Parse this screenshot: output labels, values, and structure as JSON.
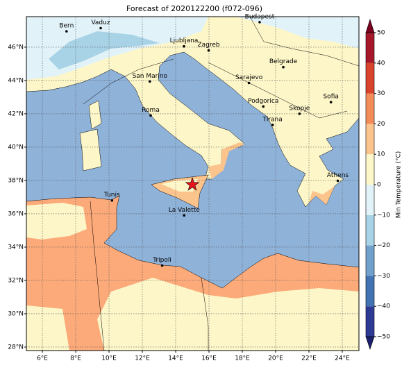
{
  "title": "Forecast of 2020122200 (f072-096)",
  "map": {
    "xlim": [
      5.04,
      25.0
    ],
    "ylim": [
      27.79,
      47.83
    ],
    "grid": true,
    "xticks": [
      {
        "value": 6,
        "label": "6°E"
      },
      {
        "value": 8,
        "label": "8°E"
      },
      {
        "value": 10,
        "label": "10°E"
      },
      {
        "value": 12,
        "label": "12°E"
      },
      {
        "value": 14,
        "label": "14°E"
      },
      {
        "value": 16,
        "label": "16°E"
      },
      {
        "value": 18,
        "label": "18°E"
      },
      {
        "value": 20,
        "label": "20°E"
      },
      {
        "value": 22,
        "label": "22°E"
      },
      {
        "value": 24,
        "label": "24°E"
      }
    ],
    "yticks": [
      {
        "value": 28,
        "label": "28°N"
      },
      {
        "value": 30,
        "label": "30°N"
      },
      {
        "value": 32,
        "label": "32°N"
      },
      {
        "value": 34,
        "label": "34°N"
      },
      {
        "value": 36,
        "label": "36°N"
      },
      {
        "value": 38,
        "label": "38°N"
      },
      {
        "value": 40,
        "label": "40°N"
      },
      {
        "value": 42,
        "label": "42°N"
      },
      {
        "value": 44,
        "label": "44°N"
      },
      {
        "value": 46,
        "label": "46°N"
      }
    ]
  },
  "cities": [
    {
      "name": "Bern",
      "lon": 7.45,
      "lat": 46.95
    },
    {
      "name": "Vaduz",
      "lon": 9.5,
      "lat": 47.14
    },
    {
      "name": "Budapest",
      "lon": 19.04,
      "lat": 47.5
    },
    {
      "name": "Ljubljana",
      "lon": 14.5,
      "lat": 46.05
    },
    {
      "name": "Zagreb",
      "lon": 15.98,
      "lat": 45.8
    },
    {
      "name": "San Marino",
      "lon": 12.45,
      "lat": 43.94
    },
    {
      "name": "Sarajevo",
      "lon": 18.4,
      "lat": 43.85
    },
    {
      "name": "Belgrade",
      "lon": 20.46,
      "lat": 44.8
    },
    {
      "name": "Roma",
      "lon": 12.5,
      "lat": 41.9
    },
    {
      "name": "Podgorica",
      "lon": 19.26,
      "lat": 42.44
    },
    {
      "name": "Skopje",
      "lon": 21.43,
      "lat": 42.0
    },
    {
      "name": "Sofia",
      "lon": 23.32,
      "lat": 42.7
    },
    {
      "name": "Tirana",
      "lon": 19.82,
      "lat": 41.33
    },
    {
      "name": "Athens",
      "lon": 23.73,
      "lat": 37.98
    },
    {
      "name": "Tunis",
      "lon": 10.18,
      "lat": 36.8
    },
    {
      "name": "La Valette",
      "lon": 14.51,
      "lat": 35.9
    },
    {
      "name": "Tripoli",
      "lon": 13.19,
      "lat": 32.89
    }
  ],
  "marker": {
    "lon": 15.0,
    "lat": 37.75,
    "color": "#e8141c"
  },
  "colorbar": {
    "label": "Min Temperature (°C)",
    "lim": [
      -50,
      50
    ],
    "ticks": [
      {
        "value": -50,
        "label": "−50"
      },
      {
        "value": -40,
        "label": "−40"
      },
      {
        "value": -30,
        "label": "−30"
      },
      {
        "value": -20,
        "label": "−20"
      },
      {
        "value": -10,
        "label": "−10"
      },
      0,
      10,
      20,
      30,
      40,
      50
    ],
    "colors": [
      "#2d3a94",
      "#4273b3",
      "#6fa1cc",
      "#a8d2e6",
      "#e1f3f8",
      "#fdf6c8",
      "#fcc48d",
      "#f48c59",
      "#d9432b",
      "#a7172a"
    ],
    "extend_colors": [
      "#1c1f6e",
      "#7a0020"
    ]
  }
}
